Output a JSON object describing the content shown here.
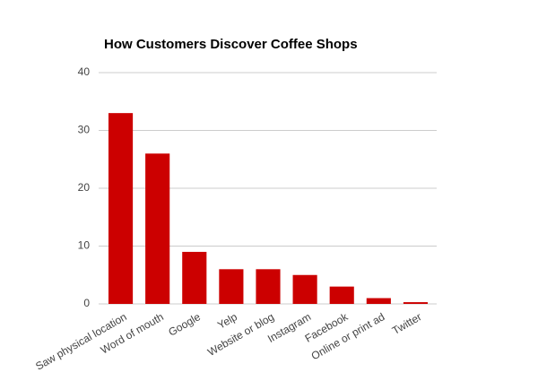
{
  "chart_data": {
    "type": "bar",
    "title": "How Customers Discover Coffee Shops",
    "categories": [
      "Saw physical location",
      "Word of mouth",
      "Google",
      "Yelp",
      "Website or blog",
      "Instagram",
      "Facebook",
      "Online or print ad",
      "Twitter"
    ],
    "values": [
      33,
      26,
      9,
      6,
      6,
      5,
      3,
      1,
      0.3
    ],
    "color": "#cc0000",
    "ylim": [
      0,
      40
    ],
    "yticks": [
      0,
      10,
      20,
      30,
      40
    ],
    "grid": true
  }
}
